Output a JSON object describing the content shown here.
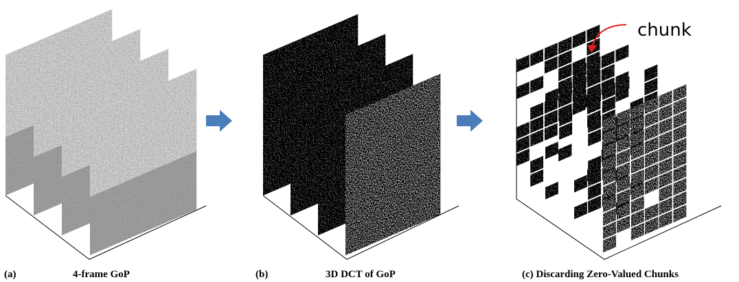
{
  "callout": "chunk",
  "captions": [
    {
      "label": "(a)",
      "text": "4-frame GoP"
    },
    {
      "label": "(b)",
      "text": "3D DCT of GoP"
    },
    {
      "label": "(c) Discarding Zero-Valued Chunks"
    }
  ]
}
